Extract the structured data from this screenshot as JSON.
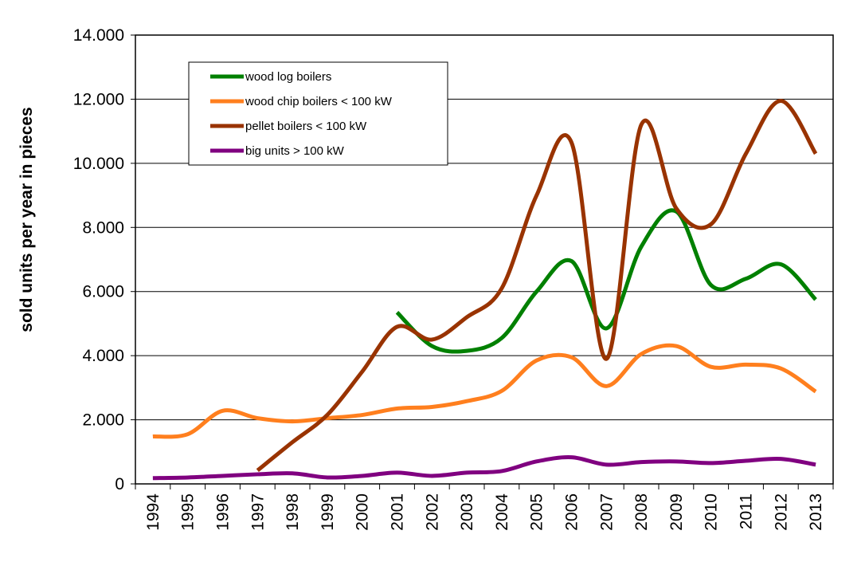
{
  "chart_data": {
    "type": "line",
    "title": "",
    "xlabel": "",
    "ylabel": "sold units per year in pieces",
    "x": [
      "1994",
      "1995",
      "1996",
      "1997",
      "1998",
      "1999",
      "2000",
      "2001",
      "2002",
      "2003",
      "2004",
      "2005",
      "2006",
      "2007",
      "2008",
      "2009",
      "2010",
      "2011",
      "2012",
      "2013"
    ],
    "ylim": [
      0,
      14000
    ],
    "yticks": [
      "0",
      "2.000",
      "4.000",
      "6.000",
      "8.000",
      "10.000",
      "12.000",
      "14.000"
    ],
    "ytick_values": [
      0,
      2000,
      4000,
      6000,
      8000,
      10000,
      12000,
      14000
    ],
    "grid": "horizontal",
    "legend_position": "top-left",
    "series": [
      {
        "name": "wood log boilers",
        "color": "#008000",
        "values": [
          null,
          null,
          null,
          null,
          null,
          null,
          null,
          5350,
          4300,
          4150,
          4550,
          6000,
          6950,
          4850,
          7400,
          8500,
          6200,
          6400,
          6850,
          5750
        ]
      },
      {
        "name": "wood chip boilers < 100 kW",
        "color": "#ff7f1e",
        "values": [
          1480,
          1550,
          2280,
          2050,
          1950,
          2050,
          2150,
          2350,
          2400,
          2580,
          2900,
          3850,
          3950,
          3050,
          4050,
          4300,
          3650,
          3720,
          3600,
          2880
        ]
      },
      {
        "name": "pellet boilers < 100 kW",
        "color": "#993300",
        "values": [
          null,
          null,
          null,
          420,
          1300,
          2150,
          3500,
          4900,
          4500,
          5200,
          6100,
          9000,
          10650,
          3900,
          11200,
          8600,
          8100,
          10300,
          11950,
          10300
        ]
      },
      {
        "name": "big units > 100 kW",
        "color": "#800080",
        "values": [
          180,
          200,
          250,
          300,
          330,
          200,
          250,
          350,
          250,
          350,
          400,
          700,
          830,
          600,
          680,
          700,
          650,
          720,
          780,
          600
        ]
      }
    ]
  }
}
